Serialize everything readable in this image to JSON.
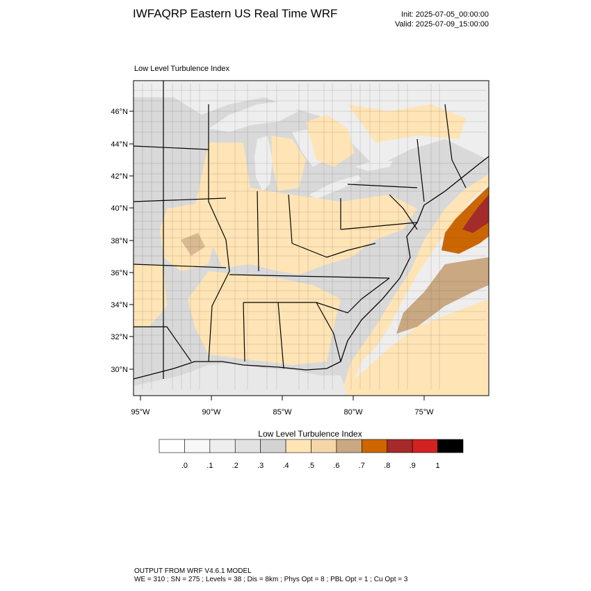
{
  "header": {
    "title": "IWFAQRP Eastern US Real Time WRF",
    "init": "Init: 2025-07-05_00:00:00",
    "valid": "Valid: 2025-07-09_15:00:00"
  },
  "map": {
    "subtitle": "Low Level Turbulence Index",
    "lat_ticks": [
      "46°N",
      "44°N",
      "42°N",
      "40°N",
      "38°N",
      "36°N",
      "34°N",
      "32°N",
      "30°N"
    ],
    "lon_ticks": [
      "95°W",
      "90°W",
      "85°W",
      "80°W",
      "75°W"
    ],
    "colors": {
      "land_base": "#d9d9d9",
      "low_turbulence": "#ffe4b5",
      "water": "#eeeeee",
      "medium": "#c9a882",
      "high": "#cc6600",
      "very_high": "#a52a2a"
    }
  },
  "colorbar": {
    "title": "Low Level Turbulence Index",
    "labels": [
      ".0",
      ".1",
      ".2",
      ".3",
      ".4",
      ".5",
      ".6",
      ".7",
      ".8",
      ".9",
      "1"
    ],
    "colors": [
      "#ffffff",
      "#f8f8f8",
      "#eeeeee",
      "#e2e2e2",
      "#d3d3d3",
      "#ffe4b5",
      "#f5d6a8",
      "#c9a882",
      "#cc6600",
      "#a52a2a",
      "#d22222",
      "#000000"
    ]
  },
  "footer": {
    "line1": "OUTPUT FROM WRF V4.6.1 MODEL",
    "line2": "WE = 310 ; SN = 275 ; Levels = 38 ; Dis = 8km ; Phys Opt = 8 ; PBL Opt = 1 ; Cu Opt = 3"
  }
}
